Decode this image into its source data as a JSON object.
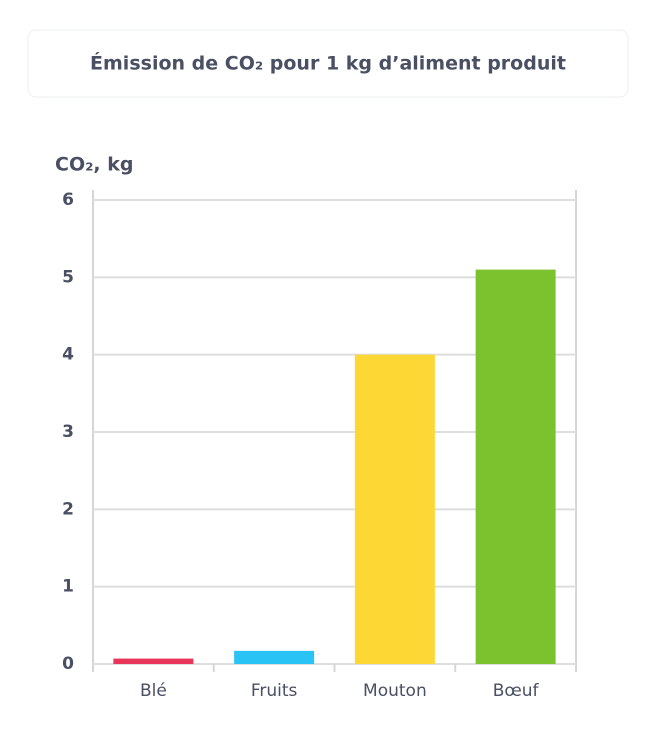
{
  "chart_data": {
    "type": "bar",
    "title": "Émission de CO₂ pour 1 kg d’aliment produit",
    "y_label": "CO₂, kg",
    "categories": [
      "Blé",
      "Fruits",
      "Mouton",
      "Bœuf"
    ],
    "values": [
      0.07,
      0.17,
      4.0,
      5.1
    ],
    "colors": [
      "#e8365a",
      "#29c4f5",
      "#fdd835",
      "#7cc12e"
    ],
    "ylim": [
      0,
      6
    ],
    "yticks": [
      0,
      1,
      2,
      3,
      4,
      5,
      6
    ],
    "grid": true
  }
}
